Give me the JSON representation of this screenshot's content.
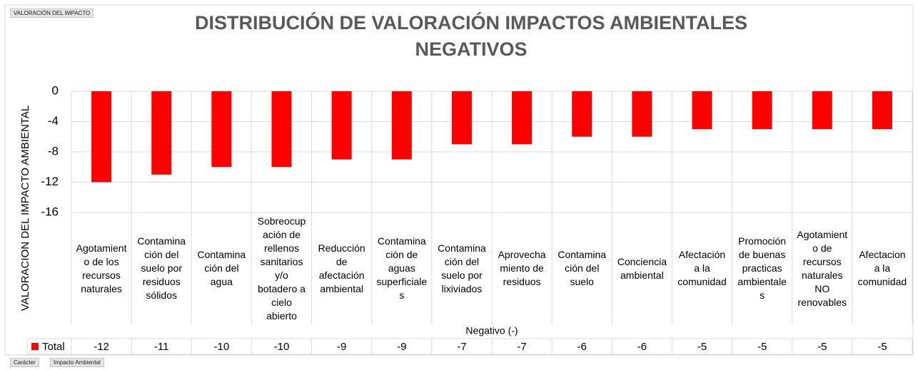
{
  "header": {
    "filter_button": "VALORACIÓN DEL IMPACTO"
  },
  "footer": {
    "field_buttons": [
      "Carácter",
      "Impacto Ambiental"
    ]
  },
  "chart_data": {
    "type": "bar",
    "title": "DISTRIBUCIÓN DE VALORACIÓN IMPACTOS AMBIENTALES NEGATIVOS",
    "y_label": "VALORACION DEL IMPACTO AMBIENTAL",
    "x_label": "Negativo (-)",
    "categories": [
      "Agotamiento de los recursos naturales",
      "Contaminación del suelo por residuos sólidos",
      "Contaminación del agua",
      "Sobreocupación de rellenos sanitarios y/o botadero a cielo abierto",
      "Reducción de afectación ambiental",
      "Contaminación de aguas superficiales",
      "Contaminación del suelo por lixiviados",
      "Aprovechamiento de residuos",
      "Contaminación del suelo",
      "Conciencia ambiental",
      "Afectación a la comunidad",
      "Promoción de buenas practicas ambientales",
      "Agotamiento de recursos naturales NO renovables",
      "Afectacion a la comunidad"
    ],
    "series": [
      {
        "name": "Total",
        "color": "#ff0000",
        "values": [
          -12,
          -11,
          -10,
          -10,
          -9,
          -9,
          -7,
          -7,
          -6,
          -6,
          -5,
          -5,
          -5,
          -5
        ]
      }
    ],
    "ylim": [
      -16,
      0
    ],
    "yticks": [
      0,
      -4,
      -8,
      -12,
      -16
    ],
    "grid": true
  }
}
